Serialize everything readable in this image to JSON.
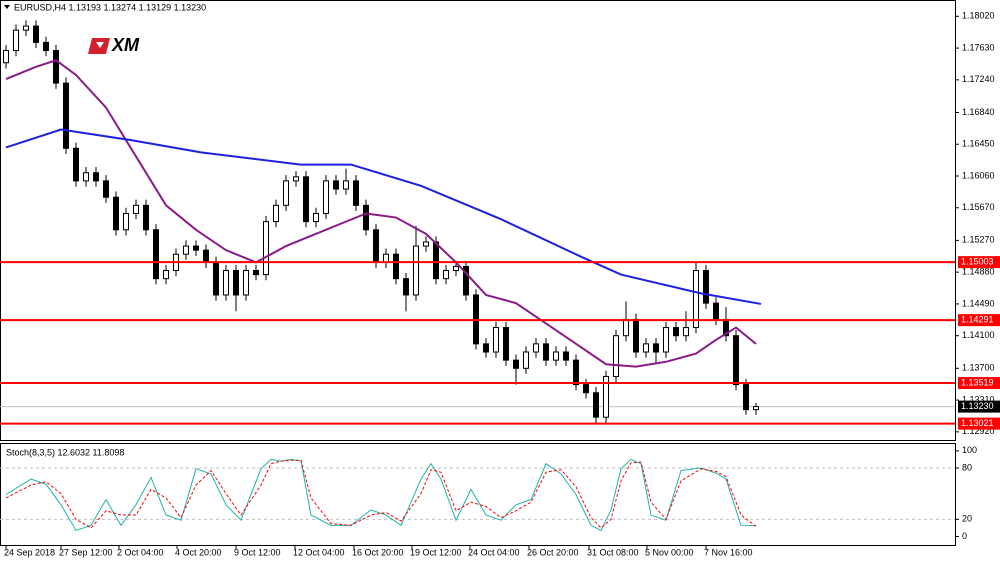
{
  "logo": "XM",
  "chart_data": [
    {
      "type": "candlestick",
      "title": "EURUSD,H4  1.13193 1.13274 1.13129 1.13230",
      "open": [
        1.1745,
        1.176,
        1.1785,
        1.179,
        1.177,
        1.176,
        1.172,
        1.164,
        1.16,
        1.161,
        1.16,
        1.158,
        1.154,
        1.156,
        1.157,
        1.154,
        1.148,
        1.149,
        1.151,
        1.152,
        1.1515,
        1.15,
        1.146,
        1.149,
        1.146,
        1.149,
        1.1485,
        1.155,
        1.157,
        1.16,
        1.1605,
        1.155,
        1.156,
        1.16,
        1.159,
        1.16,
        1.157,
        1.154,
        1.15,
        1.151,
        1.148,
        1.146,
        1.152,
        1.1525,
        1.148,
        1.149,
        1.1495,
        1.146,
        1.14,
        1.139,
        1.142,
        1.138,
        1.137,
        1.139,
        1.14,
        1.138,
        1.139,
        1.138,
        1.135,
        1.134,
        1.131,
        1.136,
        1.141,
        1.143,
        1.139,
        1.14,
        1.139,
        1.142,
        1.141,
        1.142,
        1.149,
        1.145,
        1.143,
        1.141,
        1.135,
        1.13193
      ],
      "high": [
        1.1767,
        1.1792,
        1.1797,
        1.1797,
        1.1777,
        1.1767,
        1.1727,
        1.1647,
        1.1617,
        1.1617,
        1.1607,
        1.1587,
        1.1567,
        1.1577,
        1.1577,
        1.1547,
        1.1497,
        1.1517,
        1.1527,
        1.1527,
        1.1522,
        1.1507,
        1.1497,
        1.1497,
        1.1497,
        1.1497,
        1.1557,
        1.1577,
        1.1607,
        1.1612,
        1.1612,
        1.1567,
        1.1607,
        1.1607,
        1.1615,
        1.1607,
        1.1577,
        1.1547,
        1.1517,
        1.1517,
        1.1487,
        1.1545,
        1.1532,
        1.1532,
        1.1497,
        1.1502,
        1.1502,
        1.1467,
        1.1407,
        1.1427,
        1.1427,
        1.1387,
        1.1397,
        1.1407,
        1.1407,
        1.1397,
        1.1397,
        1.1387,
        1.1357,
        1.1347,
        1.1367,
        1.1417,
        1.1452,
        1.1437,
        1.1407,
        1.1407,
        1.1427,
        1.1427,
        1.144,
        1.15,
        1.1497,
        1.1457,
        1.1445,
        1.1417,
        1.1357,
        1.13274
      ],
      "low": [
        1.1738,
        1.1753,
        1.1778,
        1.1763,
        1.1753,
        1.1713,
        1.1633,
        1.1593,
        1.1593,
        1.1593,
        1.1573,
        1.1533,
        1.1533,
        1.1553,
        1.1533,
        1.1473,
        1.1473,
        1.1483,
        1.1503,
        1.1508,
        1.1493,
        1.1453,
        1.1453,
        1.144,
        1.1453,
        1.1478,
        1.1478,
        1.1543,
        1.1563,
        1.1593,
        1.1543,
        1.1543,
        1.1553,
        1.1583,
        1.1583,
        1.1563,
        1.1533,
        1.1493,
        1.1493,
        1.1473,
        1.144,
        1.1453,
        1.1513,
        1.1473,
        1.1473,
        1.1483,
        1.1453,
        1.1393,
        1.1383,
        1.1383,
        1.1373,
        1.135,
        1.1363,
        1.1383,
        1.1373,
        1.1373,
        1.1373,
        1.1343,
        1.1333,
        1.1302,
        1.1303,
        1.1353,
        1.1403,
        1.1383,
        1.1383,
        1.1375,
        1.1383,
        1.1403,
        1.1403,
        1.1413,
        1.1443,
        1.1423,
        1.1403,
        1.1343,
        1.1313,
        1.13129
      ],
      "close": [
        1.176,
        1.1785,
        1.179,
        1.177,
        1.176,
        1.172,
        1.164,
        1.16,
        1.161,
        1.16,
        1.158,
        1.154,
        1.156,
        1.157,
        1.154,
        1.148,
        1.149,
        1.151,
        1.152,
        1.1515,
        1.15,
        1.146,
        1.149,
        1.146,
        1.149,
        1.1485,
        1.155,
        1.157,
        1.16,
        1.1605,
        1.155,
        1.156,
        1.16,
        1.159,
        1.16,
        1.157,
        1.154,
        1.15,
        1.151,
        1.148,
        1.146,
        1.152,
        1.1525,
        1.148,
        1.149,
        1.1495,
        1.146,
        1.14,
        1.139,
        1.142,
        1.138,
        1.137,
        1.139,
        1.14,
        1.138,
        1.139,
        1.138,
        1.135,
        1.134,
        1.131,
        1.136,
        1.141,
        1.143,
        1.139,
        1.14,
        1.139,
        1.142,
        1.141,
        1.142,
        1.149,
        1.145,
        1.143,
        1.141,
        1.135,
        1.13193,
        1.1323
      ],
      "series": [
        {
          "color": "#8b1a89",
          "x": [
            0,
            3,
            5,
            7,
            10,
            13,
            16,
            19,
            22,
            25,
            28,
            31,
            34,
            36,
            39,
            42,
            45,
            48,
            51,
            54,
            57,
            60,
            63,
            66,
            69,
            71,
            73,
            75
          ],
          "values": [
            1.1725,
            1.174,
            1.1748,
            1.173,
            1.169,
            1.163,
            1.157,
            1.154,
            1.1515,
            1.15,
            1.152,
            1.1535,
            1.155,
            1.156,
            1.1555,
            1.1535,
            1.15,
            1.146,
            1.145,
            1.1425,
            1.14,
            1.1375,
            1.1372,
            1.1378,
            1.1388,
            1.1405,
            1.142,
            1.14
          ]
        },
        {
          "color": "#1f1fe0",
          "x": [
            0,
            5.5,
            12.5,
            19.5,
            29.5,
            34.5,
            41.5,
            49.5,
            57.5,
            61.5,
            69.5,
            75.5
          ],
          "values": [
            1.1641,
            1.1663,
            1.165,
            1.1635,
            1.162,
            1.162,
            1.1594,
            1.1553,
            1.1507,
            1.1485,
            1.1462,
            1.1449
          ]
        }
      ],
      "levels": [
        {
          "value": 1.15003,
          "color": "#ff0000"
        },
        {
          "value": 1.14291,
          "color": "#ff0000"
        },
        {
          "value": 1.13519,
          "color": "#ff0000"
        },
        {
          "value": 1.13021,
          "color": "#ff0000"
        }
      ],
      "current": {
        "value": 1.1323,
        "label": "1.13230"
      },
      "ylim": [
        1.1282,
        1.1822
      ],
      "yticks": [
        {
          "value": 1.1802,
          "label": "1.18020"
        },
        {
          "value": 1.1763,
          "label": "1.17630"
        },
        {
          "value": 1.1724,
          "label": "1.17240"
        },
        {
          "value": 1.1684,
          "label": "1.16840"
        },
        {
          "value": 1.1645,
          "label": "1.16450"
        },
        {
          "value": 1.1606,
          "label": "1.16060"
        },
        {
          "value": 1.1567,
          "label": "1.15670"
        },
        {
          "value": 1.1527,
          "label": "1.15270"
        },
        {
          "value": 1.1488,
          "label": "1.14880"
        },
        {
          "value": 1.1449,
          "label": "1.14490"
        },
        {
          "value": 1.141,
          "label": "1.14100"
        },
        {
          "value": 1.137,
          "label": "1.13700"
        },
        {
          "value": 1.1331,
          "label": "1.13310"
        },
        {
          "value": 1.1292,
          "label": "1.12920"
        }
      ],
      "xticks": [
        {
          "value": 0,
          "label": "24 Sep 2018"
        },
        {
          "value": 5.5,
          "label": "27 Sep 12:00"
        },
        {
          "value": 11.3,
          "label": "2 Oct 04:00"
        },
        {
          "value": 17.1,
          "label": "4 Oct 20:00"
        },
        {
          "value": 23,
          "label": "9 Oct 12:00"
        },
        {
          "value": 28.9,
          "label": "12 Oct 04:00"
        },
        {
          "value": 34.8,
          "label": "16 Oct 20:00"
        },
        {
          "value": 40.6,
          "label": "19 Oct 12:00"
        },
        {
          "value": 46.4,
          "label": "24 Oct 04:00"
        },
        {
          "value": 52.3,
          "label": "26 Oct 20:00"
        },
        {
          "value": 58.3,
          "label": "31 Oct 08:00"
        },
        {
          "value": 64.1,
          "label": "5 Nov 00:00"
        },
        {
          "value": 70,
          "label": "7 Nov 16:00"
        }
      ]
    },
    {
      "type": "line",
      "title": "Stoch(8,3,5) 12.6032 11.8098",
      "x": [
        0,
        2.5,
        4,
        5.5,
        7,
        8.5,
        10,
        11.5,
        13,
        14.5,
        16,
        17.5,
        19,
        20.5,
        22,
        23.5,
        25.5,
        26.5,
        27.5,
        28.5,
        29.5,
        30.5,
        32.5,
        34.5,
        36.5,
        38,
        39.5,
        41.5,
        42.5,
        43.5,
        45,
        46.5,
        48,
        49.5,
        51,
        52.5,
        54,
        55.5,
        57,
        58.5,
        59.5,
        60.5,
        61.5,
        62.5,
        63.5,
        64.5,
        66,
        67.5,
        69.5,
        71,
        72,
        73.5,
        75
      ],
      "series": [
        {
          "color": "#20b2aa",
          "values": [
            49,
            67,
            61,
            37,
            7,
            13,
            43,
            13,
            37,
            69,
            25,
            19,
            79,
            73,
            37,
            19,
            79,
            90,
            88,
            90,
            88,
            25,
            13,
            13,
            31,
            25,
            13,
            67,
            85,
            67,
            19,
            55,
            25,
            19,
            37,
            43,
            85,
            73,
            49,
            13,
            7,
            31,
            79,
            90,
            85,
            25,
            19,
            77,
            80,
            74,
            67,
            13,
            12.6032
          ]
        },
        {
          "color": "#ff0000",
          "values": [
            45,
            60,
            64,
            50,
            20,
            10,
            30,
            25,
            25,
            55,
            45,
            22,
            60,
            77,
            50,
            25,
            60,
            85,
            88,
            89,
            89,
            45,
            15,
            13,
            25,
            28,
            18,
            50,
            78,
            75,
            30,
            40,
            35,
            22,
            30,
            40,
            75,
            78,
            58,
            22,
            10,
            20,
            65,
            86,
            87,
            40,
            20,
            65,
            79,
            76,
            70,
            25,
            11.8098
          ]
        }
      ],
      "levels": [
        20,
        80
      ],
      "ylim": [
        -10,
        108
      ],
      "yticks": [
        0,
        20,
        80,
        100
      ]
    }
  ]
}
